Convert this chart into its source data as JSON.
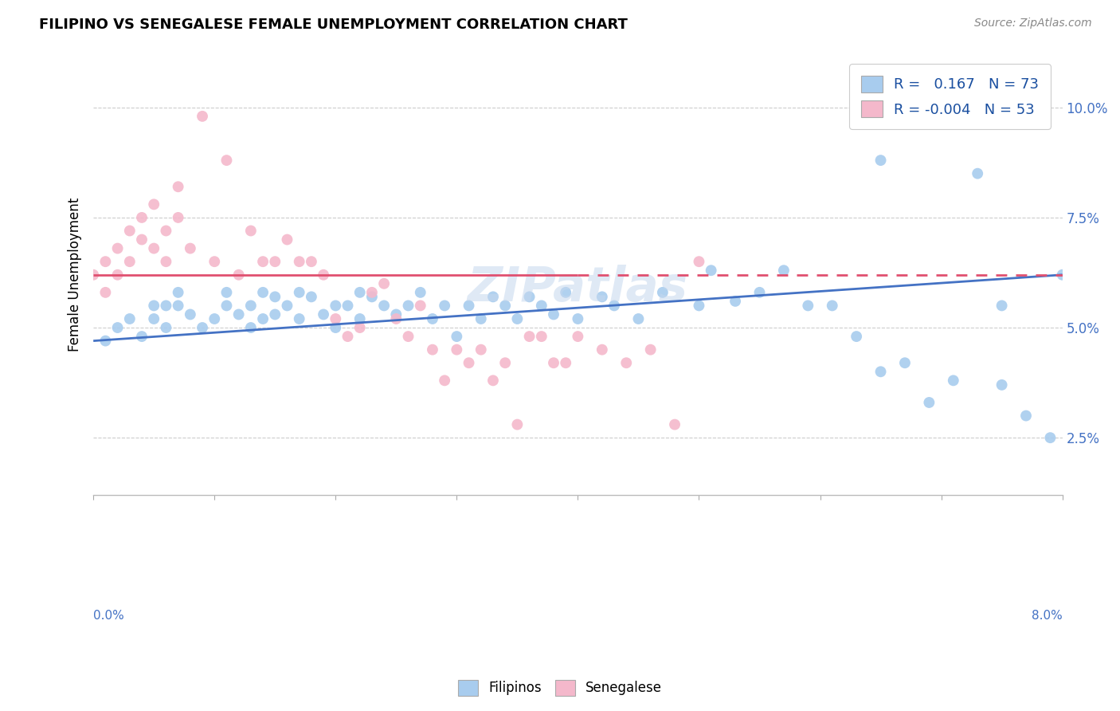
{
  "title": "FILIPINO VS SENEGALESE FEMALE UNEMPLOYMENT CORRELATION CHART",
  "source": "Source: ZipAtlas.com",
  "ylabel": "Female Unemployment",
  "y_ticks": [
    0.025,
    0.05,
    0.075,
    0.1
  ],
  "y_tick_labels": [
    "2.5%",
    "5.0%",
    "7.5%",
    "10.0%"
  ],
  "x_range": [
    0.0,
    0.08
  ],
  "y_range": [
    0.012,
    0.112
  ],
  "legend_r_filipino": "0.167",
  "legend_n_filipino": "73",
  "legend_r_senegalese": "-0.004",
  "legend_n_senegalese": "53",
  "color_filipino": "#a8ccee",
  "color_senegalese": "#f4b8cb",
  "color_line_filipino": "#4472c4",
  "color_line_senegalese": "#e05070",
  "filipino_x": [
    0.001,
    0.002,
    0.003,
    0.004,
    0.005,
    0.005,
    0.006,
    0.006,
    0.007,
    0.007,
    0.008,
    0.009,
    0.01,
    0.011,
    0.011,
    0.012,
    0.013,
    0.013,
    0.014,
    0.014,
    0.015,
    0.015,
    0.016,
    0.017,
    0.017,
    0.018,
    0.019,
    0.02,
    0.02,
    0.021,
    0.022,
    0.022,
    0.023,
    0.024,
    0.025,
    0.026,
    0.027,
    0.028,
    0.029,
    0.03,
    0.031,
    0.032,
    0.033,
    0.034,
    0.035,
    0.036,
    0.037,
    0.038,
    0.039,
    0.04,
    0.042,
    0.043,
    0.045,
    0.047,
    0.05,
    0.051,
    0.053,
    0.055,
    0.057,
    0.059,
    0.061,
    0.063,
    0.065,
    0.067,
    0.069,
    0.071,
    0.073,
    0.075,
    0.077,
    0.079,
    0.065,
    0.075,
    0.08
  ],
  "filipino_y": [
    0.047,
    0.05,
    0.052,
    0.048,
    0.052,
    0.055,
    0.05,
    0.055,
    0.055,
    0.058,
    0.053,
    0.05,
    0.052,
    0.055,
    0.058,
    0.053,
    0.05,
    0.055,
    0.052,
    0.058,
    0.053,
    0.057,
    0.055,
    0.052,
    0.058,
    0.057,
    0.053,
    0.05,
    0.055,
    0.055,
    0.052,
    0.058,
    0.057,
    0.055,
    0.053,
    0.055,
    0.058,
    0.052,
    0.055,
    0.048,
    0.055,
    0.052,
    0.057,
    0.055,
    0.052,
    0.057,
    0.055,
    0.053,
    0.058,
    0.052,
    0.057,
    0.055,
    0.052,
    0.058,
    0.055,
    0.063,
    0.056,
    0.058,
    0.063,
    0.055,
    0.055,
    0.048,
    0.04,
    0.042,
    0.033,
    0.038,
    0.085,
    0.055,
    0.03,
    0.025,
    0.088,
    0.037,
    0.062
  ],
  "senegalese_x": [
    0.0,
    0.001,
    0.001,
    0.002,
    0.002,
    0.003,
    0.003,
    0.004,
    0.004,
    0.005,
    0.005,
    0.006,
    0.006,
    0.007,
    0.007,
    0.008,
    0.009,
    0.01,
    0.011,
    0.012,
    0.013,
    0.014,
    0.015,
    0.016,
    0.017,
    0.018,
    0.019,
    0.02,
    0.021,
    0.022,
    0.023,
    0.024,
    0.025,
    0.026,
    0.027,
    0.028,
    0.029,
    0.03,
    0.031,
    0.032,
    0.033,
    0.034,
    0.035,
    0.036,
    0.037,
    0.038,
    0.039,
    0.04,
    0.042,
    0.044,
    0.046,
    0.048,
    0.05
  ],
  "senegalese_y": [
    0.062,
    0.058,
    0.065,
    0.062,
    0.068,
    0.065,
    0.072,
    0.07,
    0.075,
    0.068,
    0.078,
    0.072,
    0.065,
    0.075,
    0.082,
    0.068,
    0.098,
    0.065,
    0.088,
    0.062,
    0.072,
    0.065,
    0.065,
    0.07,
    0.065,
    0.065,
    0.062,
    0.052,
    0.048,
    0.05,
    0.058,
    0.06,
    0.052,
    0.048,
    0.055,
    0.045,
    0.038,
    0.045,
    0.042,
    0.045,
    0.038,
    0.042,
    0.028,
    0.048,
    0.048,
    0.042,
    0.042,
    0.048,
    0.045,
    0.042,
    0.045,
    0.028,
    0.065
  ],
  "line_filipino_x0": 0.0,
  "line_filipino_y0": 0.047,
  "line_filipino_x1": 0.08,
  "line_filipino_y1": 0.062,
  "line_senegalese_x0": 0.0,
  "line_senegalese_y0": 0.062,
  "line_senegalese_x1": 0.08,
  "line_senegalese_y1": 0.062
}
